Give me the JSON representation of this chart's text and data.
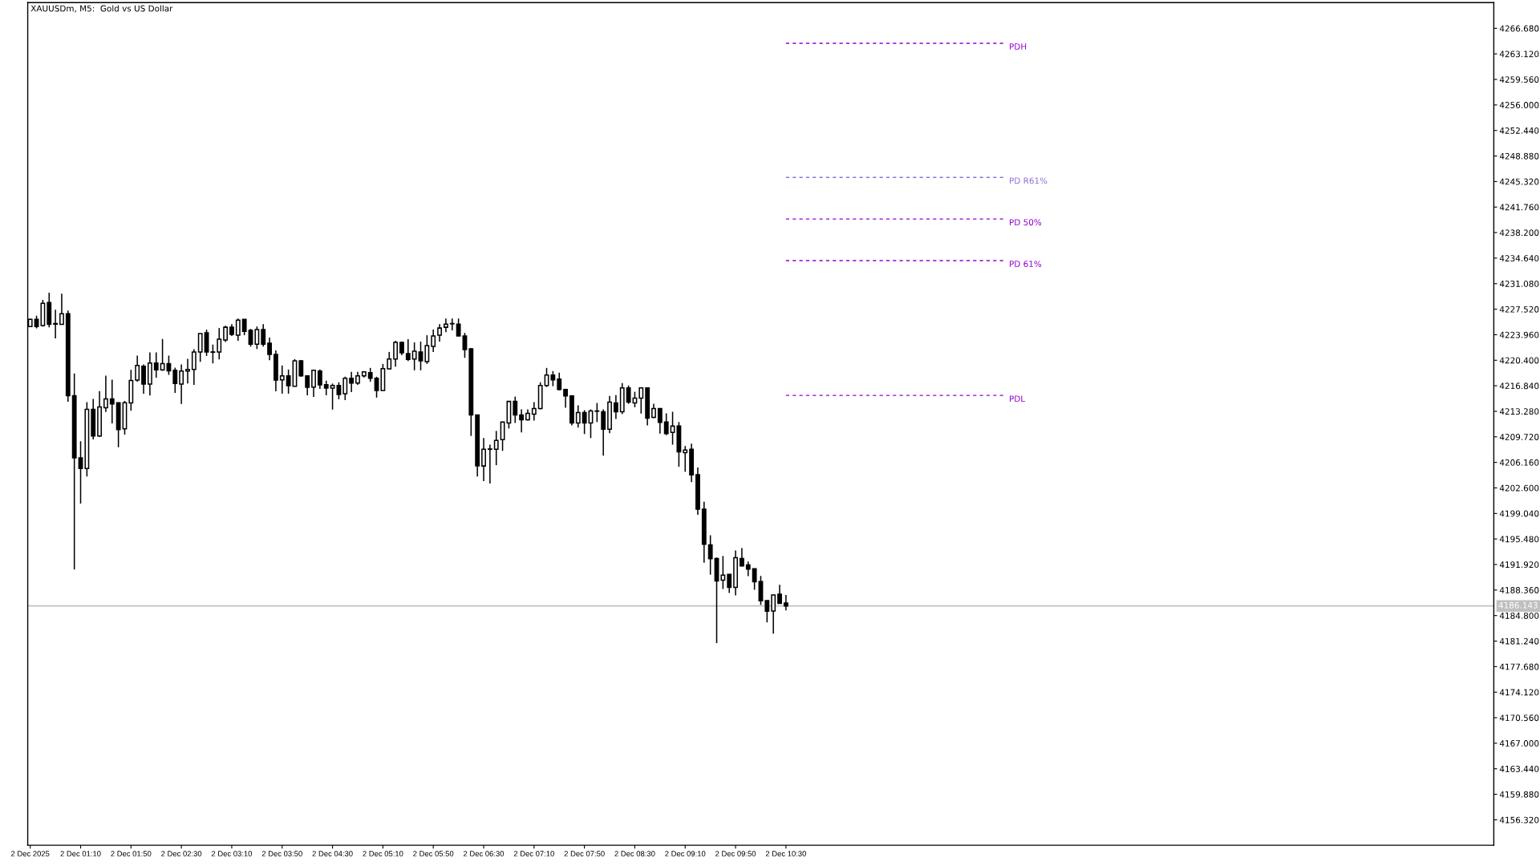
{
  "chart_data": {
    "type": "candlestick",
    "title": "XAUUSDm, M5:  Gold vs US Dollar",
    "x": [
      "2025-12-02T00:30",
      "2025-12-02T00:35",
      "2025-12-02T00:40",
      "2025-12-02T00:45",
      "2025-12-02T00:50",
      "2025-12-02T00:55",
      "2025-12-02T01:00",
      "2025-12-02T01:05",
      "2025-12-02T01:10",
      "2025-12-02T01:15",
      "2025-12-02T01:20",
      "2025-12-02T01:25",
      "2025-12-02T01:30",
      "2025-12-02T01:35",
      "2025-12-02T01:40",
      "2025-12-02T01:45",
      "2025-12-02T01:50",
      "2025-12-02T01:55",
      "2025-12-02T02:00",
      "2025-12-02T02:05",
      "2025-12-02T02:10",
      "2025-12-02T02:15",
      "2025-12-02T02:20",
      "2025-12-02T02:25",
      "2025-12-02T02:30",
      "2025-12-02T02:35",
      "2025-12-02T02:40",
      "2025-12-02T02:45",
      "2025-12-02T02:50",
      "2025-12-02T02:55",
      "2025-12-02T03:00",
      "2025-12-02T03:05",
      "2025-12-02T03:10",
      "2025-12-02T03:15",
      "2025-12-02T03:20",
      "2025-12-02T03:25",
      "2025-12-02T03:30",
      "2025-12-02T03:35",
      "2025-12-02T03:40",
      "2025-12-02T03:45",
      "2025-12-02T03:50",
      "2025-12-02T03:55",
      "2025-12-02T04:00",
      "2025-12-02T04:05",
      "2025-12-02T04:10",
      "2025-12-02T04:15",
      "2025-12-02T04:20",
      "2025-12-02T04:25",
      "2025-12-02T04:30",
      "2025-12-02T04:35",
      "2025-12-02T04:40",
      "2025-12-02T04:45",
      "2025-12-02T04:50",
      "2025-12-02T04:55",
      "2025-12-02T05:00",
      "2025-12-02T05:05",
      "2025-12-02T05:10",
      "2025-12-02T05:15",
      "2025-12-02T05:20",
      "2025-12-02T05:25",
      "2025-12-02T05:30",
      "2025-12-02T05:35",
      "2025-12-02T05:40",
      "2025-12-02T05:45",
      "2025-12-02T05:50",
      "2025-12-02T05:55",
      "2025-12-02T06:00",
      "2025-12-02T06:05",
      "2025-12-02T06:10",
      "2025-12-02T06:15",
      "2025-12-02T06:20",
      "2025-12-02T06:25",
      "2025-12-02T06:30",
      "2025-12-02T06:35",
      "2025-12-02T06:40",
      "2025-12-02T06:45",
      "2025-12-02T06:50",
      "2025-12-02T06:55",
      "2025-12-02T07:00",
      "2025-12-02T07:05",
      "2025-12-02T07:10",
      "2025-12-02T07:15",
      "2025-12-02T07:20",
      "2025-12-02T07:25",
      "2025-12-02T07:30",
      "2025-12-02T07:35",
      "2025-12-02T07:40",
      "2025-12-02T07:45",
      "2025-12-02T07:50",
      "2025-12-02T07:55",
      "2025-12-02T08:00",
      "2025-12-02T08:05",
      "2025-12-02T08:10",
      "2025-12-02T08:15",
      "2025-12-02T08:20",
      "2025-12-02T08:25",
      "2025-12-02T08:30",
      "2025-12-02T08:35",
      "2025-12-02T08:40",
      "2025-12-02T08:45",
      "2025-12-02T08:50",
      "2025-12-02T08:55",
      "2025-12-02T09:00",
      "2025-12-02T09:05",
      "2025-12-02T09:10",
      "2025-12-02T09:15",
      "2025-12-02T09:20",
      "2025-12-02T09:25",
      "2025-12-02T09:30",
      "2025-12-02T09:35",
      "2025-12-02T09:40",
      "2025-12-02T09:45",
      "2025-12-02T09:50",
      "2025-12-02T09:55",
      "2025-12-02T10:00",
      "2025-12-02T10:05",
      "2025-12-02T10:10",
      "2025-12-02T10:15",
      "2025-12-02T10:20",
      "2025-12-02T10:25",
      "2025-12-02T10:30"
    ],
    "ohlc": [
      [
        4225.11,
        4226.2,
        4225.1,
        4226.11
      ],
      [
        4226.11,
        4226.6,
        4224.86,
        4225.11
      ],
      [
        4225.23,
        4228.82,
        4225.11,
        4228.34
      ],
      [
        4228.45,
        4229.82,
        4225.0,
        4225.41
      ],
      [
        4225.52,
        4227.45,
        4223.45,
        4225.45
      ],
      [
        4225.41,
        4229.67,
        4225.41,
        4226.89
      ],
      [
        4226.89,
        4227.34,
        4214.63,
        4215.45
      ],
      [
        4215.45,
        4218.56,
        4191.22,
        4206.78
      ],
      [
        4206.78,
        4209.11,
        4200.41,
        4205.3
      ],
      [
        4205.3,
        4214.56,
        4204.18,
        4213.56
      ],
      [
        4213.56,
        4215.0,
        4209.37,
        4209.85
      ],
      [
        4209.85,
        4216.11,
        4209.74,
        4213.89
      ],
      [
        4213.78,
        4218.26,
        4213.19,
        4215.0
      ],
      [
        4215.0,
        4217.7,
        4211.59,
        4214.3
      ],
      [
        4214.48,
        4214.48,
        4208.26,
        4210.74
      ],
      [
        4210.85,
        4214.74,
        4210.04,
        4214.48
      ],
      [
        4214.45,
        4219.07,
        4213.37,
        4217.59
      ],
      [
        4217.63,
        4221.04,
        4217.41,
        4219.67
      ],
      [
        4219.56,
        4219.82,
        4215.74,
        4217.07
      ],
      [
        4217.07,
        4221.48,
        4215.48,
        4220.0
      ],
      [
        4220.0,
        4221.48,
        4217.96,
        4219.07
      ],
      [
        4219.07,
        4223.37,
        4218.93,
        4219.93
      ],
      [
        4219.93,
        4221.04,
        4218.37,
        4218.93
      ],
      [
        4219.0,
        4219.37,
        4215.85,
        4217.15
      ],
      [
        4217.07,
        4219.82,
        4214.3,
        4218.89
      ],
      [
        4218.89,
        4220.59,
        4217.15,
        4219.11
      ],
      [
        4219.11,
        4221.93,
        4216.96,
        4221.56
      ],
      [
        4221.56,
        4224.11,
        4220.19,
        4224.11
      ],
      [
        4224.22,
        4224.67,
        4221.0,
        4221.56
      ],
      [
        4221.56,
        4222.59,
        4219.96,
        4221.52
      ],
      [
        4221.56,
        4224.89,
        4220.52,
        4223.33
      ],
      [
        4223.22,
        4225.22,
        4222.96,
        4225.0
      ],
      [
        4225.0,
        4225.44,
        4223.78,
        4224.0
      ],
      [
        4223.89,
        4226.22,
        4223.11,
        4226.0
      ],
      [
        4226.11,
        4226.11,
        4223.89,
        4224.44
      ],
      [
        4224.56,
        4224.78,
        4222.3,
        4222.63
      ],
      [
        4222.63,
        4225.11,
        4221.96,
        4224.67
      ],
      [
        4224.67,
        4225.44,
        4222.3,
        4222.63
      ],
      [
        4222.78,
        4223.56,
        4220.41,
        4221.22
      ],
      [
        4221.22,
        4221.78,
        4216.07,
        4217.63
      ],
      [
        4217.67,
        4219.67,
        4215.74,
        4218.22
      ],
      [
        4218.22,
        4219.11,
        4215.74,
        4216.85
      ],
      [
        4216.78,
        4220.56,
        4216.78,
        4220.33
      ],
      [
        4220.33,
        4220.44,
        4218.11,
        4218.22
      ],
      [
        4218.22,
        4218.22,
        4215.52,
        4216.63
      ],
      [
        4216.67,
        4219.0,
        4215.3,
        4219.0
      ],
      [
        4218.89,
        4219.11,
        4216.41,
        4216.96
      ],
      [
        4217.0,
        4217.56,
        4215.52,
        4216.52
      ],
      [
        4216.52,
        4217.15,
        4213.52,
        4216.89
      ],
      [
        4216.89,
        4217.33,
        4214.96,
        4215.63
      ],
      [
        4215.74,
        4218.11,
        4214.85,
        4217.89
      ],
      [
        4217.89,
        4218.78,
        4215.96,
        4217.22
      ],
      [
        4217.22,
        4218.78,
        4216.96,
        4218.22
      ],
      [
        4218.22,
        4218.89,
        4218.0,
        4218.78
      ],
      [
        4218.67,
        4219.33,
        4217.41,
        4217.89
      ],
      [
        4217.89,
        4218.11,
        4215.19,
        4216.19
      ],
      [
        4216.19,
        4219.89,
        4216.19,
        4219.22
      ],
      [
        4219.19,
        4221.56,
        4219.11,
        4220.56
      ],
      [
        4220.56,
        4223.11,
        4219.52,
        4222.89
      ],
      [
        4222.89,
        4223.0,
        4221.11,
        4221.44
      ],
      [
        4221.33,
        4223.33,
        4220.3,
        4220.52
      ],
      [
        4220.56,
        4222.89,
        4219.0,
        4221.67
      ],
      [
        4221.56,
        4223.0,
        4219.0,
        4220.33
      ],
      [
        4220.22,
        4223.89,
        4219.89,
        4222.44
      ],
      [
        4222.33,
        4224.67,
        4221.56,
        4223.78
      ],
      [
        4223.89,
        4225.44,
        4223.0,
        4224.89
      ],
      [
        4225.0,
        4226.22,
        4224.33,
        4225.44
      ],
      [
        4225.52,
        4226.22,
        4224.56,
        4225.48
      ],
      [
        4225.44,
        4226.22,
        4223.78,
        4223.78
      ],
      [
        4223.78,
        4224.22,
        4220.74,
        4221.89
      ],
      [
        4222.0,
        4222.11,
        4209.85,
        4212.78
      ],
      [
        4212.78,
        4212.78,
        4204.19,
        4205.67
      ],
      [
        4205.66,
        4209.55,
        4203.55,
        4208.0
      ],
      [
        4207.99,
        4208.63,
        4203.22,
        4208.03
      ],
      [
        4208.0,
        4210.55,
        4205.77,
        4209.22
      ],
      [
        4209.33,
        4211.78,
        4207.77,
        4211.78
      ],
      [
        4211.66,
        4214.66,
        4210.89,
        4214.66
      ],
      [
        4214.66,
        4215.33,
        4211.66,
        4212.78
      ],
      [
        4212.78,
        4213.55,
        4210.33,
        4212.11
      ],
      [
        4212.11,
        4213.55,
        4212.0,
        4213.0
      ],
      [
        4212.89,
        4214.55,
        4212.0,
        4213.66
      ],
      [
        4213.66,
        4217.33,
        4213.55,
        4216.89
      ],
      [
        4216.89,
        4219.33,
        4216.66,
        4218.33
      ],
      [
        4218.33,
        4218.89,
        4216.78,
        4217.66
      ],
      [
        4217.78,
        4218.66,
        4216.22,
        4216.33
      ],
      [
        4216.33,
        4216.44,
        4213.78,
        4215.44
      ],
      [
        4215.44,
        4215.55,
        4211.33,
        4211.66
      ],
      [
        4211.66,
        4214.11,
        4211.0,
        4213.11
      ],
      [
        4213.11,
        4213.44,
        4210.11,
        4211.66
      ],
      [
        4211.66,
        4213.55,
        4209.55,
        4213.33
      ],
      [
        4213.33,
        4214.44,
        4211.78,
        4213.29
      ],
      [
        4213.22,
        4213.55,
        4207.11,
        4210.78
      ],
      [
        4210.78,
        4215.44,
        4210.22,
        4214.55
      ],
      [
        4214.44,
        4215.55,
        4212.22,
        4213.22
      ],
      [
        4213.22,
        4217.22,
        4212.89,
        4216.55
      ],
      [
        4216.55,
        4216.89,
        4214.33,
        4214.55
      ],
      [
        4214.44,
        4216.0,
        4213.85,
        4215.11
      ],
      [
        4215.11,
        4216.55,
        4212.96,
        4216.55
      ],
      [
        4216.55,
        4216.55,
        4211.33,
        4212.33
      ],
      [
        4212.44,
        4214.33,
        4212.33,
        4213.66
      ],
      [
        4213.66,
        4213.66,
        4210.18,
        4211.74
      ],
      [
        4211.78,
        4213.0,
        4209.96,
        4210.18
      ],
      [
        4210.33,
        4213.22,
        4208.63,
        4211.22
      ],
      [
        4211.22,
        4211.78,
        4205.55,
        4207.63
      ],
      [
        4207.52,
        4208.44,
        4204.85,
        4207.89
      ],
      [
        4208.0,
        4208.78,
        4203.4,
        4204.41
      ],
      [
        4204.44,
        4205.44,
        4198.85,
        4199.63
      ],
      [
        4199.63,
        4200.66,
        4192.18,
        4194.74
      ],
      [
        4194.66,
        4196.0,
        4190.51,
        4192.74
      ],
      [
        4192.77,
        4192.89,
        4180.96,
        4189.63
      ],
      [
        4189.74,
        4193.11,
        4188.51,
        4190.44
      ],
      [
        4190.55,
        4190.55,
        4187.96,
        4188.74
      ],
      [
        4188.74,
        4193.88,
        4187.62,
        4192.88
      ],
      [
        4192.77,
        4194.22,
        4191.63,
        4191.74
      ],
      [
        4191.85,
        4192.33,
        4190.29,
        4191.29
      ],
      [
        4191.33,
        4191.33,
        4188.4,
        4189.51
      ],
      [
        4189.55,
        4190.33,
        4186.29,
        4186.85
      ],
      [
        4186.88,
        4186.88,
        4183.85,
        4185.4
      ],
      [
        4185.44,
        4187.66,
        4182.29,
        4187.66
      ],
      [
        4187.77,
        4189.11,
        4186.51,
        4186.51
      ],
      [
        4186.55,
        4187.66,
        4185.51,
        4186.14
      ]
    ],
    "series": [
      {
        "type": "line",
        "name": "PDH",
        "color": "#9400d3",
        "line_style": "dashed",
        "x": [
          "2025-12-02T10:30",
          "2025-12-02T13:25"
        ],
        "values": [
          4264.6,
          4264.6
        ]
      },
      {
        "type": "line",
        "name": "PD R61%",
        "color": "#9370db",
        "line_style": "dashed",
        "x": [
          "2025-12-02T10:30",
          "2025-12-02T13:25"
        ],
        "values": [
          4245.9,
          4245.9
        ]
      },
      {
        "type": "line",
        "name": "PD 50%",
        "color": "#9400d3",
        "line_style": "dashed",
        "x": [
          "2025-12-02T10:30",
          "2025-12-02T13:25"
        ],
        "values": [
          4240.1,
          4240.1
        ]
      },
      {
        "type": "line",
        "name": "PD 61%",
        "color": "#9400d3",
        "line_style": "dashed",
        "x": [
          "2025-12-02T10:30",
          "2025-12-02T13:25"
        ],
        "values": [
          4234.3,
          4234.3
        ]
      },
      {
        "type": "line",
        "name": "PDL",
        "color": "#9400d3",
        "line_style": "dashed",
        "x": [
          "2025-12-02T10:30",
          "2025-12-02T13:25"
        ],
        "values": [
          4215.5,
          4215.5
        ]
      }
    ],
    "ref_lines": [
      {
        "axis": "y",
        "value": 4186.143,
        "label": "4186.143",
        "color": "#c0c0c0"
      }
    ],
    "xlim": [
      "2025-12-02T00:28",
      "2025-12-02T19:52"
    ],
    "xticks": [
      {
        "value": "2025-12-02T00:30",
        "label": "2 Dec 2025"
      },
      {
        "value": "2025-12-02T01:10",
        "label": "2 Dec 01:10"
      },
      {
        "value": "2025-12-02T01:50",
        "label": "2 Dec 01:50"
      },
      {
        "value": "2025-12-02T02:30",
        "label": "2 Dec 02:30"
      },
      {
        "value": "2025-12-02T03:10",
        "label": "2 Dec 03:10"
      },
      {
        "value": "2025-12-02T03:50",
        "label": "2 Dec 03:50"
      },
      {
        "value": "2025-12-02T04:30",
        "label": "2 Dec 04:30"
      },
      {
        "value": "2025-12-02T05:10",
        "label": "2 Dec 05:10"
      },
      {
        "value": "2025-12-02T05:50",
        "label": "2 Dec 05:50"
      },
      {
        "value": "2025-12-02T06:30",
        "label": "2 Dec 06:30"
      },
      {
        "value": "2025-12-02T07:10",
        "label": "2 Dec 07:10"
      },
      {
        "value": "2025-12-02T07:50",
        "label": "2 Dec 07:50"
      },
      {
        "value": "2025-12-02T08:30",
        "label": "2 Dec 08:30"
      },
      {
        "value": "2025-12-02T09:10",
        "label": "2 Dec 09:10"
      },
      {
        "value": "2025-12-02T09:50",
        "label": "2 Dec 09:50"
      },
      {
        "value": "2025-12-02T10:30",
        "label": "2 Dec 10:30"
      }
    ],
    "ylim": [
      4152.78,
      4270.27
    ],
    "yticks": [
      {
        "value": 4156.32,
        "label": "4156.320"
      },
      {
        "value": 4159.88,
        "label": "4159.880"
      },
      {
        "value": 4163.44,
        "label": "4163.440"
      },
      {
        "value": 4167.0,
        "label": "4167.000"
      },
      {
        "value": 4170.56,
        "label": "4170.560"
      },
      {
        "value": 4174.12,
        "label": "4174.120"
      },
      {
        "value": 4177.68,
        "label": "4177.680"
      },
      {
        "value": 4181.24,
        "label": "4181.240"
      },
      {
        "value": 4184.8,
        "label": "4184.800"
      },
      {
        "value": 4188.36,
        "label": "4188.360"
      },
      {
        "value": 4191.92,
        "label": "4191.920"
      },
      {
        "value": 4195.48,
        "label": "4195.480"
      },
      {
        "value": 4199.04,
        "label": "4199.040"
      },
      {
        "value": 4202.6,
        "label": "4202.600"
      },
      {
        "value": 4206.16,
        "label": "4206.160"
      },
      {
        "value": 4209.72,
        "label": "4209.720"
      },
      {
        "value": 4213.28,
        "label": "4213.280"
      },
      {
        "value": 4216.84,
        "label": "4216.840"
      },
      {
        "value": 4220.4,
        "label": "4220.400"
      },
      {
        "value": 4223.96,
        "label": "4223.960"
      },
      {
        "value": 4227.52,
        "label": "4227.520"
      },
      {
        "value": 4231.08,
        "label": "4231.080"
      },
      {
        "value": 4234.64,
        "label": "4234.640"
      },
      {
        "value": 4238.2,
        "label": "4238.200"
      },
      {
        "value": 4241.76,
        "label": "4241.760"
      },
      {
        "value": 4245.32,
        "label": "4245.320"
      },
      {
        "value": 4248.88,
        "label": "4248.880"
      },
      {
        "value": 4252.44,
        "label": "4252.440"
      },
      {
        "value": 4256.0,
        "label": "4256.000"
      },
      {
        "value": 4259.56,
        "label": "4259.560"
      },
      {
        "value": 4263.12,
        "label": "4263.120"
      },
      {
        "value": 4266.68,
        "label": "4266.680"
      }
    ],
    "grid": false,
    "legend": false
  }
}
